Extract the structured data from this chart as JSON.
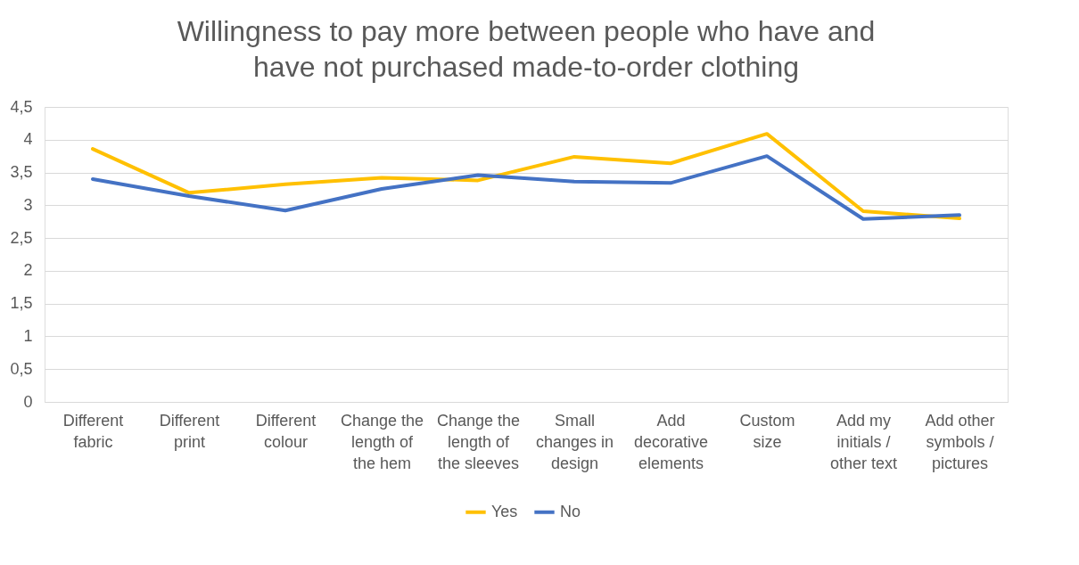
{
  "chart_data": {
    "type": "line",
    "title": "Willingness to pay more between people who have and\nhave not purchased made-to-order clothing",
    "categories": [
      "Different\nfabric",
      "Different\nprint",
      "Different\ncolour",
      "Change the\nlength of\nthe hem",
      "Change the\nlength of\nthe sleeves",
      "Small\nchanges in\ndesign",
      "Add\ndecorative\nelements",
      "Custom\nsize",
      "Add my\ninitials /\nother text",
      "Add other\nsymbols /\npictures"
    ],
    "series": [
      {
        "name": "Yes",
        "color": "#ffc000",
        "values": [
          3.86,
          3.19,
          3.32,
          3.42,
          3.38,
          3.74,
          3.64,
          4.09,
          2.91,
          2.8
        ]
      },
      {
        "name": "No",
        "color": "#4472c4",
        "values": [
          3.4,
          3.14,
          2.92,
          3.25,
          3.46,
          3.36,
          3.34,
          3.75,
          2.79,
          2.85
        ]
      }
    ],
    "ylim": [
      0,
      4.5
    ],
    "yticks": [
      0,
      {
        "value": 0.5,
        "label": "0,5"
      },
      1,
      {
        "value": 1.5,
        "label": "1,5"
      },
      2,
      {
        "value": 2.5,
        "label": "2,5"
      },
      3,
      {
        "value": 3.5,
        "label": "3,5"
      },
      4,
      {
        "value": 4.5,
        "label": "4,5"
      }
    ],
    "grid": "y",
    "legend": "bottom",
    "marker": "none",
    "line_style": "solid"
  }
}
